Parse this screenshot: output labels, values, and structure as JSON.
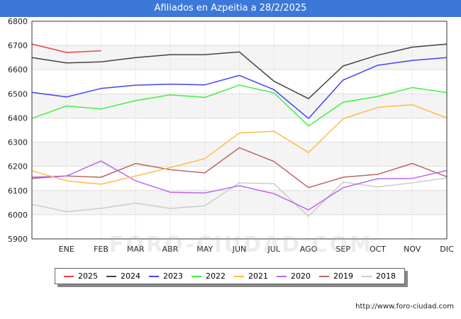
{
  "title": "Afiliados en Azpeitia a 28/2/2025",
  "source": "http://www.foro-ciudad.com",
  "watermark": "FORO-CIUDAD.COM",
  "chart_data": {
    "type": "line",
    "categories": [
      "",
      "ENE",
      "FEB",
      "MAR",
      "ABR",
      "MAY",
      "JUN",
      "JUL",
      "AGO",
      "SEP",
      "OCT",
      "NOV",
      "DIC"
    ],
    "ylim": [
      5900,
      6800
    ],
    "yticks": [
      5900,
      6000,
      6100,
      6200,
      6300,
      6400,
      6500,
      6600,
      6700,
      6800
    ],
    "grid": true,
    "legend_position": "bottom",
    "series": [
      {
        "name": "2025",
        "color": "#ee4444",
        "values": [
          6706,
          6671,
          6678,
          null,
          null,
          null,
          null,
          null,
          null,
          null,
          null,
          null,
          null
        ]
      },
      {
        "name": "2024",
        "color": "#444444",
        "values": [
          6650,
          6628,
          6632,
          6650,
          6662,
          6662,
          6673,
          6552,
          6480,
          6615,
          6660,
          6693,
          6706
        ]
      },
      {
        "name": "2023",
        "color": "#4444ee",
        "values": [
          6506,
          6487,
          6522,
          6536,
          6540,
          6537,
          6576,
          6517,
          6398,
          6557,
          6618,
          6638,
          6650
        ]
      },
      {
        "name": "2022",
        "color": "#44ee44",
        "values": [
          6398,
          6450,
          6437,
          6472,
          6496,
          6485,
          6536,
          6504,
          6367,
          6465,
          6489,
          6526,
          6505
        ]
      },
      {
        "name": "2021",
        "color": "#ffbb44",
        "values": [
          6182,
          6140,
          6126,
          6160,
          6195,
          6232,
          6338,
          6345,
          6257,
          6397,
          6444,
          6455,
          6400
        ]
      },
      {
        "name": "2020",
        "color": "#bb66ee",
        "values": [
          6155,
          6160,
          6222,
          6140,
          6093,
          6090,
          6120,
          6087,
          6020,
          6112,
          6149,
          6150,
          6183
        ]
      },
      {
        "name": "2019",
        "color": "#bb6666",
        "values": [
          6150,
          6160,
          6155,
          6212,
          6186,
          6173,
          6277,
          6220,
          6112,
          6155,
          6167,
          6212,
          6157
        ]
      },
      {
        "name": "2018",
        "color": "#cccccc",
        "values": [
          6043,
          6013,
          6026,
          6048,
          6026,
          6037,
          6132,
          6128,
          5993,
          6135,
          6115,
          6132,
          6152
        ]
      }
    ]
  }
}
